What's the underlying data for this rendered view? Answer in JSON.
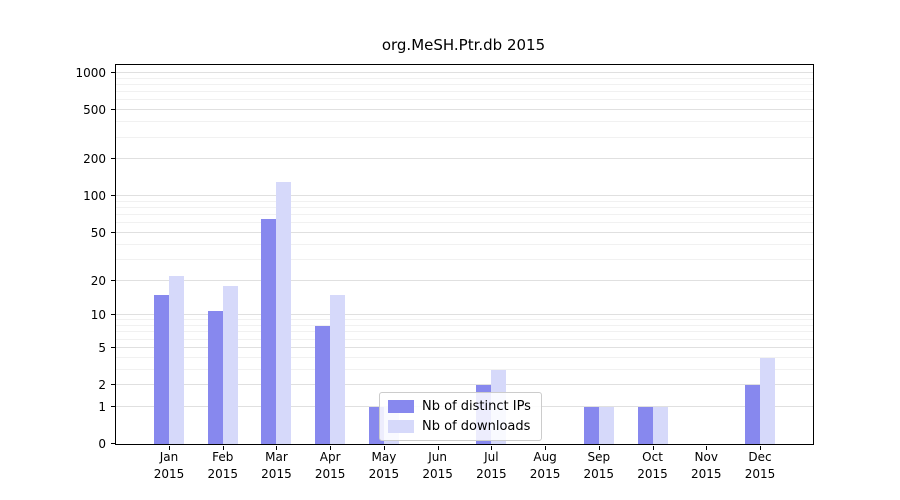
{
  "chart_data": {
    "type": "bar",
    "title": "org.MeSH.Ptr.db 2015",
    "scale": "log1p",
    "grid": true,
    "ylim": [
      0,
      1000
    ],
    "yticks": [
      0,
      1,
      2,
      5,
      10,
      20,
      50,
      100,
      200,
      500,
      1000
    ],
    "y_minor_gridlines": [
      3,
      4,
      6,
      7,
      8,
      9,
      30,
      40,
      60,
      70,
      80,
      90,
      300,
      400,
      600,
      700,
      800,
      900
    ],
    "legend_position": "bottom-center-inside",
    "categories": [
      {
        "month": "Jan",
        "year": "2015"
      },
      {
        "month": "Feb",
        "year": "2015"
      },
      {
        "month": "Mar",
        "year": "2015"
      },
      {
        "month": "Apr",
        "year": "2015"
      },
      {
        "month": "May",
        "year": "2015"
      },
      {
        "month": "Jun",
        "year": "2015"
      },
      {
        "month": "Jul",
        "year": "2015"
      },
      {
        "month": "Aug",
        "year": "2015"
      },
      {
        "month": "Sep",
        "year": "2015"
      },
      {
        "month": "Oct",
        "year": "2015"
      },
      {
        "month": "Nov",
        "year": "2015"
      },
      {
        "month": "Dec",
        "year": "2015"
      }
    ],
    "series": [
      {
        "name": "Nb of distinct IPs",
        "color": "#8788ee",
        "values": [
          15,
          11,
          65,
          8,
          1,
          0,
          2,
          0,
          1,
          1,
          0,
          2
        ]
      },
      {
        "name": "Nb of downloads",
        "color": "#d6d9fa",
        "values": [
          22,
          18,
          130,
          15,
          1,
          0,
          3,
          0,
          1,
          1,
          0,
          4
        ]
      }
    ]
  }
}
